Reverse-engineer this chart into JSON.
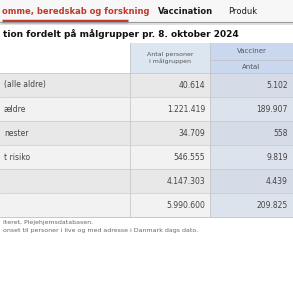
{
  "nav_text1": "omme, beredskab og forskning",
  "nav_text2": "Vaccination",
  "nav_text3": "Produk",
  "nav_underline_color": "#c0392b",
  "nav_separator_color": "#cccccc",
  "nav_bg": "#f7f7f7",
  "subtitle": "tion fordelt på målgrupper pr. 8. oktober 2024",
  "col_header1_line1": "Antal personer",
  "col_header1_line2": "i målgruppen",
  "col_header2_main": "Vaccine",
  "col_header2_sub": "Antal",
  "rows": [
    {
      "label": "(alle aldre)",
      "col1": "40.614",
      "col2": "5.102"
    },
    {
      "label": "ældre",
      "col1": "1.221.419",
      "col2": "189.907"
    },
    {
      "label": "nester",
      "col1": "34.709",
      "col2": "558"
    },
    {
      "label": "t risiko",
      "col1": "546.555",
      "col2": "9.819"
    },
    {
      "label": "",
      "col1": "4.147.303",
      "col2": "4.439"
    },
    {
      "label": "",
      "col1": "5.990.600",
      "col2": "209.825"
    }
  ],
  "footer1": "iteret, Plejehjemsdatabasen.",
  "footer2": "onset til personer i live og med adresse i Danmark dags dato.",
  "bg_color": "#ffffff",
  "header_col1_bg": "#dce6f1",
  "header_col2_bg": "#c9d8ee",
  "row_odd_bg": "#e8e8e8",
  "row_even_bg": "#f2f2f2",
  "row_odd_col2_bg": "#d5dce8",
  "row_even_col2_bg": "#dde3ed",
  "sep_color": "#c0c0c0",
  "text_color": "#444444",
  "header_text_color": "#555555",
  "nav_red": "#c0392b",
  "nav_dark": "#1a1a1a",
  "subtitle_color": "#111111"
}
